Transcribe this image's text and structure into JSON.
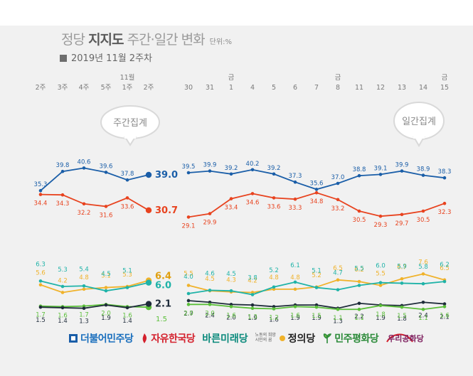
{
  "title": {
    "prefix": "정당",
    "strong": "지지도",
    "suffix": "주간·일간 변화",
    "unit": "단위:%"
  },
  "subtitle": "2019년 11월 2주차",
  "bubbles": {
    "weekly": "주간집계",
    "daily": "일간집계"
  },
  "legend": [
    {
      "label": "더불어민주당",
      "color": "#1a5ea8",
      "icon": "dem-logo-icon"
    },
    {
      "label": "자유한국당",
      "color": "#d4202c",
      "icon": "lkp-torch-icon"
    },
    {
      "label": "바른미래당",
      "color": "#00a4a0",
      "icon": "none"
    },
    {
      "label": "정의당",
      "color": "#f0b22a",
      "icon": "justice-logo-icon",
      "small": "노동의 희망 시민의 꿈"
    },
    {
      "label": "민주평화당",
      "color": "#2c8b3a",
      "icon": "pdp-sprout-icon"
    },
    {
      "label": "우리공화당",
      "color": "#8b1c55",
      "icon": "republic-logo-icon"
    }
  ],
  "chart_data": {
    "type": "line",
    "weekly": {
      "categories": [
        "2주",
        "3주",
        "4주",
        "5주",
        "1주",
        "2주"
      ],
      "month_marker": {
        "index": 4,
        "label": "11월"
      },
      "series": [
        {
          "party": "더불어민주당",
          "color": "#1a5ea8",
          "values": [
            35.3,
            39.8,
            40.6,
            39.6,
            37.8,
            39.0
          ]
        },
        {
          "party": "자유한국당",
          "color": "#e8431f",
          "values": [
            34.4,
            34.3,
            32.2,
            31.6,
            33.6,
            30.7
          ]
        },
        {
          "party": "정의당",
          "color": "#f0b22a",
          "values": [
            5.6,
            4.2,
            4.8,
            5.1,
            5.3,
            6.4
          ]
        },
        {
          "party": "바른미래당",
          "color": "#1fb3a8",
          "values": [
            6.3,
            5.3,
            5.4,
            4.5,
            5.1,
            6.0
          ]
        },
        {
          "party": "민주평화당",
          "color": "#5bbf3a",
          "values": [
            1.7,
            1.6,
            1.7,
            2.0,
            1.6,
            1.5
          ]
        },
        {
          "party": "우리공화당",
          "color": "#1e2b3a",
          "values": [
            1.5,
            1.4,
            1.3,
            1.9,
            1.4,
            2.1
          ]
        }
      ]
    },
    "daily": {
      "categories": [
        "30",
        "31",
        "1",
        "4",
        "5",
        "6",
        "7",
        "8",
        "11",
        "12",
        "13",
        "14",
        "15"
      ],
      "weekday_markers": [
        {
          "index": 2,
          "label": "금"
        },
        {
          "index": 7,
          "label": "금"
        },
        {
          "index": 12,
          "label": "금"
        }
      ],
      "series": [
        {
          "party": "더불어민주당",
          "color": "#1a5ea8",
          "values": [
            39.5,
            39.9,
            39.2,
            40.2,
            39.2,
            37.3,
            35.6,
            37.0,
            38.8,
            39.1,
            39.9,
            38.9,
            38.3
          ]
        },
        {
          "party": "자유한국당",
          "color": "#e8431f",
          "values": [
            29.1,
            29.9,
            33.4,
            34.6,
            33.6,
            33.3,
            34.8,
            33.2,
            30.5,
            29.3,
            29.7,
            30.5,
            32.3
          ]
        },
        {
          "party": "정의당",
          "color": "#f0b22a",
          "values": [
            5.5,
            4.5,
            4.3,
            4.2,
            4.8,
            4.8,
            5.2,
            6.5,
            6.2,
            5.5,
            6.7,
            7.6,
            6.5
          ]
        },
        {
          "party": "바른미래당",
          "color": "#1fb3a8",
          "values": [
            4.0,
            4.6,
            4.5,
            3.8,
            5.2,
            6.1,
            5.1,
            4.7,
            5.5,
            6.0,
            5.9,
            5.8,
            6.2
          ]
        },
        {
          "party": "우리공화당",
          "color": "#1e2b3a",
          "values": [
            2.7,
            2.4,
            2.0,
            1.9,
            1.6,
            1.9,
            1.9,
            1.3,
            2.2,
            1.9,
            1.8,
            2.4,
            2.1
          ]
        },
        {
          "party": "민주평화당",
          "color": "#5bbf3a",
          "values": [
            2.0,
            2.0,
            1.6,
            1.3,
            1.2,
            1.6,
            1.5,
            1.1,
            1.1,
            1.8,
            1.5,
            1.1,
            1.6
          ]
        }
      ]
    }
  }
}
